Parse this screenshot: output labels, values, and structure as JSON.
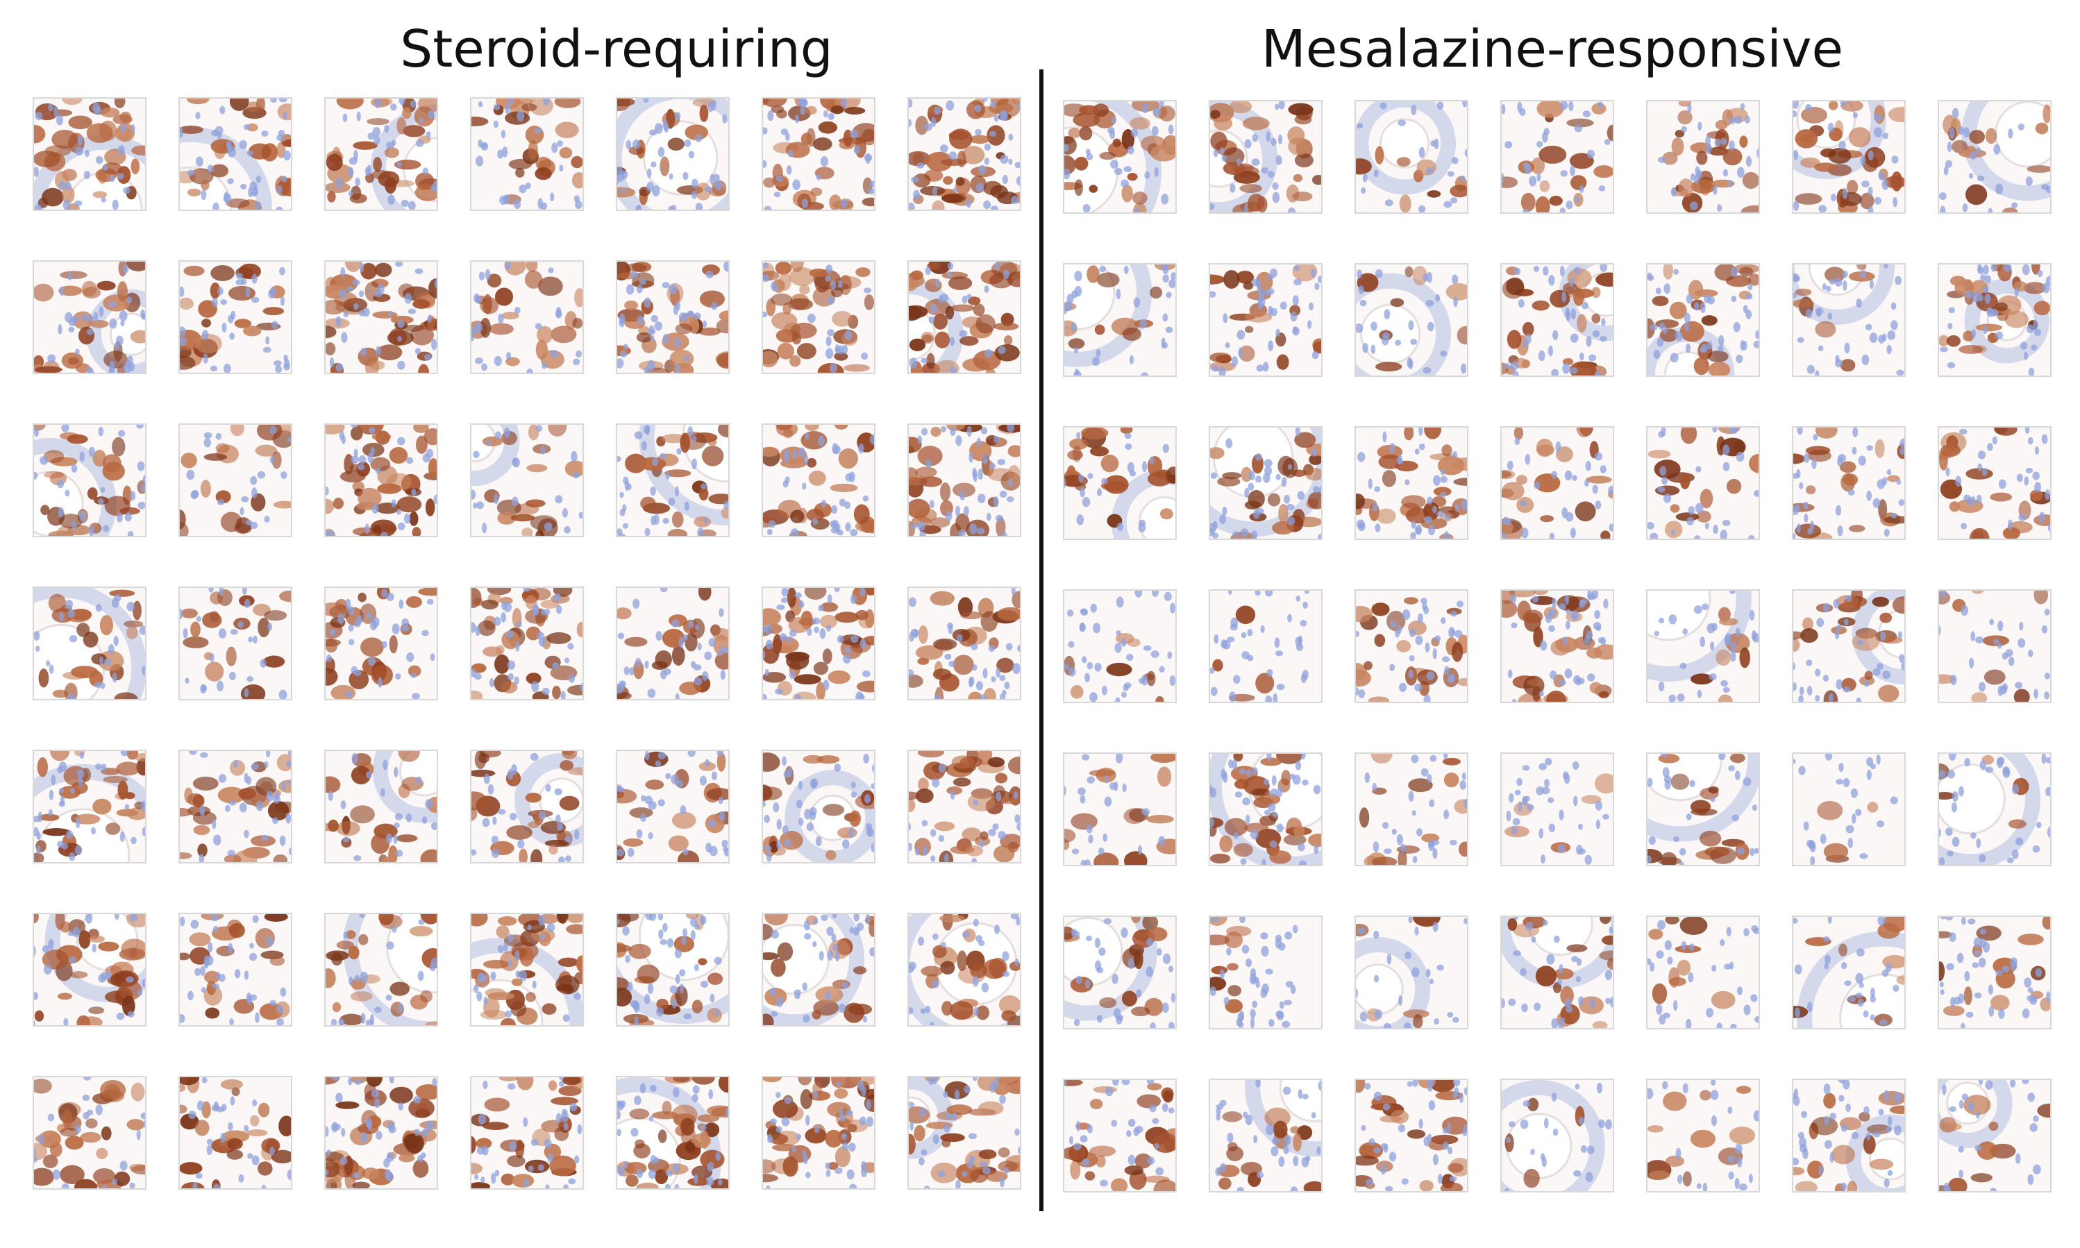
{
  "panels": [
    {
      "title": "Steroid-requiring"
    },
    {
      "title": "Mesalazine-responsive"
    }
  ]
}
